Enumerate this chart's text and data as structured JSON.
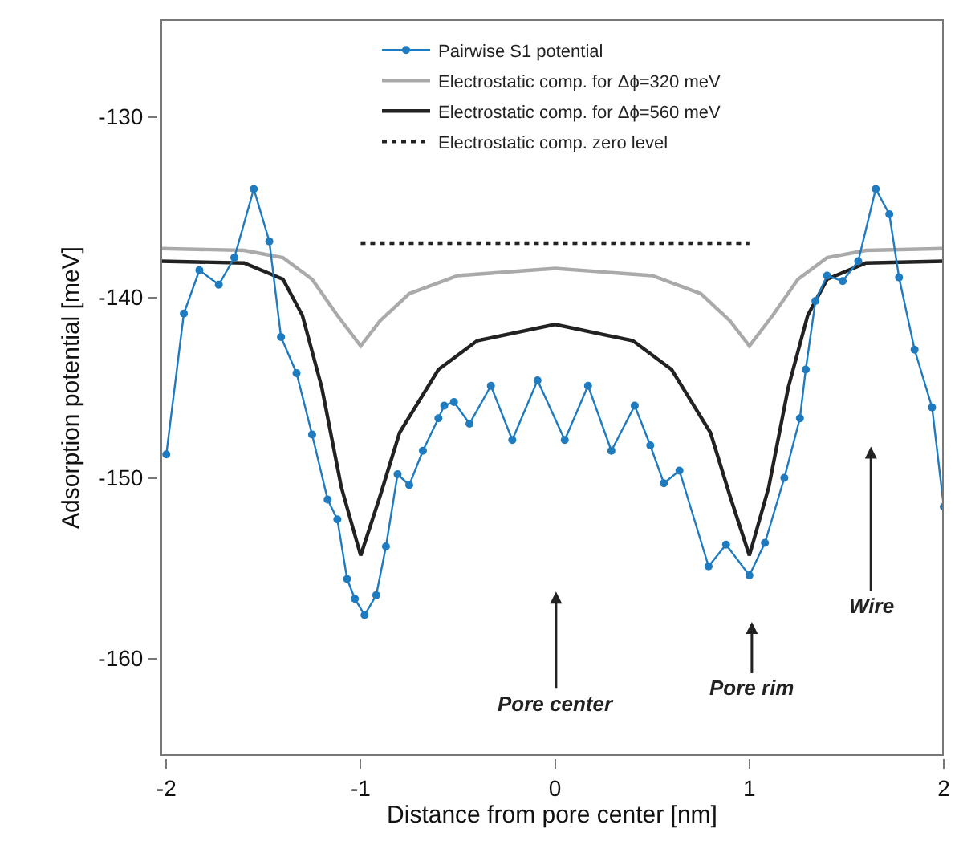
{
  "chart_data": {
    "type": "line",
    "xlabel": "Distance from pore center [nm]",
    "ylabel": "Adsorption potential [meV]",
    "xlim": [
      -2.03,
      2.0
    ],
    "xticks": [
      -2,
      -1,
      0,
      1,
      2
    ],
    "ylim": [
      -165.4,
      -124.6
    ],
    "yticks": [
      -130,
      -140,
      -150,
      -160
    ],
    "legend": "top",
    "series": [
      {
        "name": "Pairwise S1 potential",
        "color": "#1f7bc0",
        "marker": "circle",
        "line_style": "solid",
        "x": [
          -2.0,
          -1.91,
          -1.83,
          -1.73,
          -1.65,
          -1.55,
          -1.47,
          -1.41,
          -1.33,
          -1.25,
          -1.17,
          -1.12,
          -1.07,
          -1.03,
          -0.98,
          -0.92,
          -0.87,
          -0.81,
          -0.75,
          -0.68,
          -0.6,
          -0.57,
          -0.52,
          -0.44,
          -0.33,
          -0.22,
          -0.09,
          0.05,
          0.17,
          0.29,
          0.41,
          0.49,
          0.56,
          0.64,
          0.79,
          0.88,
          1.0,
          1.08,
          1.18,
          1.26,
          1.29,
          1.34,
          1.4,
          1.48,
          1.56,
          1.65,
          1.72,
          1.77,
          1.85,
          1.94,
          2.0
        ],
        "values": [
          -148.7,
          -140.9,
          -138.5,
          -139.3,
          -137.8,
          -134.0,
          -136.9,
          -142.2,
          -144.2,
          -147.6,
          -151.2,
          -152.3,
          -155.6,
          -156.7,
          -157.6,
          -156.5,
          -153.8,
          -149.8,
          -150.4,
          -148.5,
          -146.7,
          -146.0,
          -145.8,
          -147.0,
          -144.9,
          -147.9,
          -144.6,
          -147.9,
          -144.9,
          -148.5,
          -146.0,
          -148.2,
          -150.3,
          -149.6,
          -154.9,
          -153.7,
          -155.4,
          -153.6,
          -150.0,
          -146.7,
          -144.0,
          -140.2,
          -138.8,
          -139.1,
          -138.0,
          -134.0,
          -135.4,
          -138.9,
          -142.9,
          -146.1,
          -151.6
        ]
      },
      {
        "name": "Electrostatic comp. for Δϕ=320 meV",
        "color": "#aaaaaa",
        "marker": "none",
        "line_style": "solid",
        "x": [
          -2.03,
          -1.6,
          -1.4,
          -1.25,
          -1.12,
          -1.0,
          -0.9,
          -0.75,
          -0.5,
          0,
          0.5,
          0.75,
          0.9,
          1.0,
          1.12,
          1.25,
          1.4,
          1.6,
          2.0
        ],
        "values": [
          -137.3,
          -137.4,
          -137.8,
          -139.0,
          -141.0,
          -142.7,
          -141.3,
          -139.8,
          -138.8,
          -138.4,
          -138.8,
          -139.8,
          -141.3,
          -142.7,
          -141.0,
          -139.0,
          -137.8,
          -137.4,
          -137.3
        ]
      },
      {
        "name": "Electrostatic comp. for Δϕ=560 meV",
        "color": "#222222",
        "marker": "none",
        "line_style": "solid",
        "x": [
          -2.03,
          -1.6,
          -1.4,
          -1.3,
          -1.2,
          -1.1,
          -1.0,
          -0.9,
          -0.8,
          -0.6,
          -0.4,
          0,
          0.4,
          0.6,
          0.8,
          0.9,
          1.0,
          1.1,
          1.2,
          1.3,
          1.4,
          1.6,
          2.0
        ],
        "values": [
          -138.0,
          -138.1,
          -139.0,
          -141.0,
          -145.0,
          -150.5,
          -154.3,
          -151.0,
          -147.5,
          -144.0,
          -142.4,
          -141.5,
          -142.4,
          -144.0,
          -147.5,
          -151.0,
          -154.3,
          -150.5,
          -145.0,
          -141.0,
          -139.0,
          -138.1,
          -138.0
        ]
      },
      {
        "name": "Electrostatic comp. zero level",
        "color": "#222222",
        "marker": "none",
        "line_style": "dotted",
        "x": [
          -1.0,
          1.0
        ],
        "values": [
          -137.0,
          -137.0
        ]
      }
    ],
    "annotations": [
      "Pore center",
      "Pore rim",
      "Wire"
    ]
  }
}
